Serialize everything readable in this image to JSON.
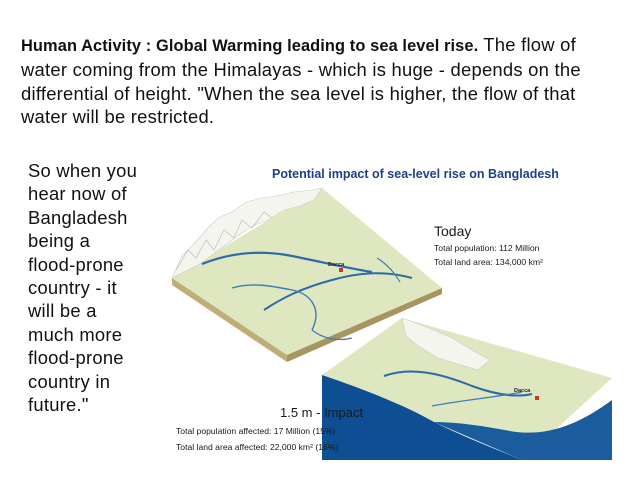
{
  "text": {
    "lead": "Human Activity : Global Warming leading to sea level rise.",
    "body": " The flow of water coming from the Himalayas - which is huge - depends on the differential of height. \"When the sea level is higher, the flow of that water will be restricted.",
    "side_lines": [
      "So when you",
      "hear now of",
      "Bangladesh",
      "being a",
      "flood-prone",
      "country - it",
      "will be a",
      "much more",
      "flood-prone",
      "country in",
      "future.\""
    ]
  },
  "figure": {
    "title": "Potential impact of sea-level rise on Bangladesh",
    "today": {
      "heading": "Today",
      "population": "Total population: 112 Million",
      "land_area": "Total land area: 134,000 km²",
      "city_label": "Dacca"
    },
    "impact": {
      "heading": "1.5 m - Impact",
      "population": "Total population affected: 17 Million (15%)",
      "land_area": "Total land area affected: 22,000 km² (16%)",
      "city_label": "Dacca"
    },
    "colors": {
      "title_blue": "#1f3f8a",
      "land_green": "#d9e4b4",
      "mountain_white": "#f4f6f1",
      "river_blue": "#2f6aa7",
      "sea_blue": "#0e4f93",
      "city_red": "#c0392b"
    }
  }
}
